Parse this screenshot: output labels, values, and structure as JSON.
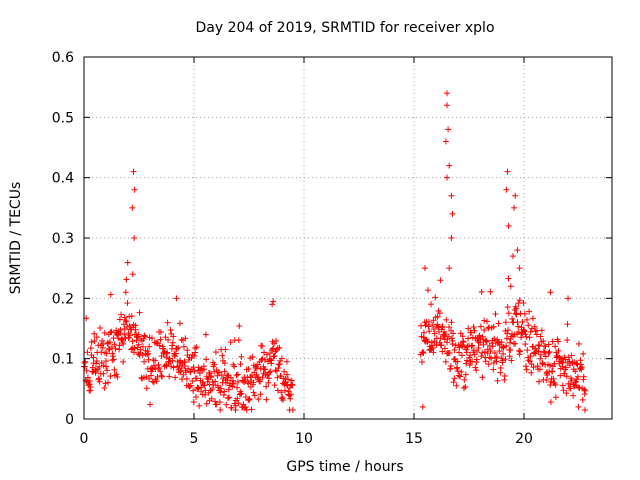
{
  "chart_data": {
    "type": "scatter",
    "title": "Day 204 of 2019, SRMTID for receiver xplo",
    "xlabel": "GPS time / hours",
    "ylabel": "SRMTID / TECUs",
    "xlim": [
      0,
      24
    ],
    "ylim": [
      0,
      0.6
    ],
    "xticks": [
      0,
      5,
      10,
      15,
      20
    ],
    "xtick_labels": [
      "0",
      "5",
      "10",
      "15",
      "20"
    ],
    "yticks": [
      0,
      0.1,
      0.2,
      0.3,
      0.4,
      0.5,
      0.6
    ],
    "ytick_labels": [
      "0",
      "0.1",
      "0.2",
      "0.3",
      "0.4",
      "0.5",
      "0.6"
    ],
    "grid": true,
    "marker": "plus",
    "color": "#ff0000",
    "segments": [
      {
        "x_start": 0.0,
        "x_end": 9.5,
        "base": [
          [
            0.0,
            0.085
          ],
          [
            1.0,
            0.09
          ],
          [
            1.5,
            0.12
          ],
          [
            2.0,
            0.16
          ],
          [
            2.4,
            0.12
          ],
          [
            3.0,
            0.09
          ],
          [
            3.5,
            0.1
          ],
          [
            4.3,
            0.11
          ],
          [
            5.0,
            0.07
          ],
          [
            6.0,
            0.055
          ],
          [
            7.0,
            0.055
          ],
          [
            8.0,
            0.07
          ],
          [
            8.6,
            0.1
          ],
          [
            9.0,
            0.06
          ],
          [
            9.5,
            0.05
          ]
        ]
      },
      {
        "x_start": 15.3,
        "x_end": 22.8,
        "base": [
          [
            15.3,
            0.12
          ],
          [
            16.0,
            0.14
          ],
          [
            16.5,
            0.13
          ],
          [
            17.0,
            0.1
          ],
          [
            18.0,
            0.12
          ],
          [
            19.0,
            0.11
          ],
          [
            19.5,
            0.15
          ],
          [
            20.0,
            0.14
          ],
          [
            21.0,
            0.09
          ],
          [
            22.0,
            0.08
          ],
          [
            22.8,
            0.07
          ]
        ]
      }
    ],
    "peaks": [
      [
        2.25,
        0.41
      ],
      [
        2.3,
        0.38
      ],
      [
        2.2,
        0.35
      ],
      [
        2.28,
        0.3
      ],
      [
        2.22,
        0.24
      ],
      [
        1.9,
        0.21
      ],
      [
        8.6,
        0.195
      ],
      [
        8.55,
        0.19
      ],
      [
        4.2,
        0.2
      ],
      [
        16.5,
        0.54
      ],
      [
        16.5,
        0.52
      ],
      [
        16.55,
        0.48
      ],
      [
        16.45,
        0.46
      ],
      [
        16.6,
        0.42
      ],
      [
        16.5,
        0.4
      ],
      [
        16.7,
        0.37
      ],
      [
        16.75,
        0.34
      ],
      [
        16.7,
        0.3
      ],
      [
        16.6,
        0.25
      ],
      [
        19.25,
        0.41
      ],
      [
        19.2,
        0.38
      ],
      [
        19.6,
        0.37
      ],
      [
        19.55,
        0.35
      ],
      [
        19.3,
        0.32
      ],
      [
        19.7,
        0.28
      ],
      [
        19.5,
        0.27
      ],
      [
        19.8,
        0.25
      ],
      [
        19.4,
        0.22
      ],
      [
        21.2,
        0.21
      ],
      [
        22.0,
        0.2
      ],
      [
        15.5,
        0.25
      ],
      [
        16.2,
        0.23
      ],
      [
        15.4,
        0.02
      ]
    ],
    "samples_per_hour": 55,
    "noise": 0.03
  }
}
